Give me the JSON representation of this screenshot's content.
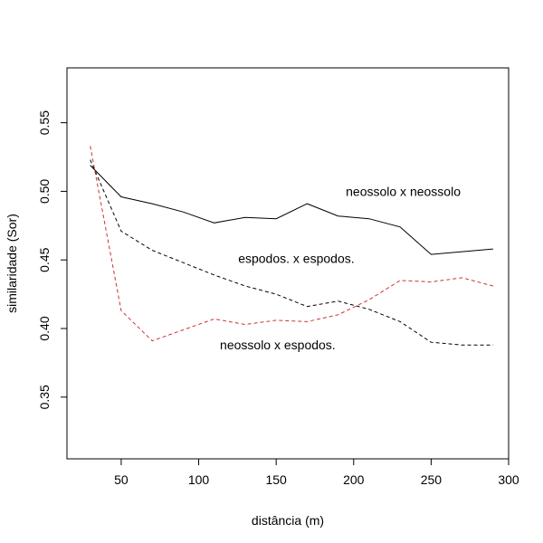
{
  "chart_data": {
    "type": "line",
    "xlabel": "distância (m)",
    "ylabel": "similaridade (Sor)",
    "xlim": [
      15,
      300
    ],
    "ylim": [
      0.305,
      0.59
    ],
    "xticks": [
      50,
      100,
      150,
      200,
      250,
      300
    ],
    "yticks": [
      0.35,
      0.4,
      0.45,
      0.5,
      0.55
    ],
    "xtick_labels": [
      "50",
      "100",
      "150",
      "200",
      "250",
      "300"
    ],
    "ytick_labels": [
      "0.35",
      "0.40",
      "0.45",
      "0.50",
      "0.55"
    ],
    "grid": false,
    "series": [
      {
        "name": "neossolo x neossolo",
        "color": "#000000",
        "linestyle": "solid",
        "x": [
          30,
          50,
          70,
          90,
          110,
          130,
          150,
          170,
          190,
          210,
          230,
          250,
          270,
          290
        ],
        "y": [
          0.519,
          0.496,
          0.491,
          0.485,
          0.477,
          0.481,
          0.48,
          0.491,
          0.482,
          0.48,
          0.474,
          0.454,
          0.456,
          0.458
        ]
      },
      {
        "name": "espodos. x espodos.",
        "color": "#000000",
        "linestyle": "dashed",
        "x": [
          30,
          50,
          70,
          90,
          110,
          130,
          150,
          170,
          190,
          210,
          230,
          250,
          270,
          290
        ],
        "y": [
          0.523,
          0.471,
          0.457,
          0.448,
          0.439,
          0.431,
          0.425,
          0.416,
          0.42,
          0.414,
          0.405,
          0.39,
          0.388,
          0.388
        ]
      },
      {
        "name": "neossolo x espodos.",
        "color": "#cc3333",
        "linestyle": "dashed",
        "x": [
          30,
          50,
          70,
          90,
          110,
          130,
          150,
          170,
          190,
          210,
          230,
          250,
          270,
          290
        ],
        "y": [
          0.533,
          0.413,
          0.391,
          0.399,
          0.407,
          0.403,
          0.406,
          0.405,
          0.41,
          0.421,
          0.435,
          0.434,
          0.437,
          0.431
        ]
      }
    ],
    "annotations": [
      {
        "text": "neossolo x neossolo",
        "x": 232,
        "y": 0.5
      },
      {
        "text": "espodos. x espodos.",
        "x": 163,
        "y": 0.451
      },
      {
        "text": "neossolo x espodos.",
        "x": 151,
        "y": 0.388
      }
    ]
  }
}
